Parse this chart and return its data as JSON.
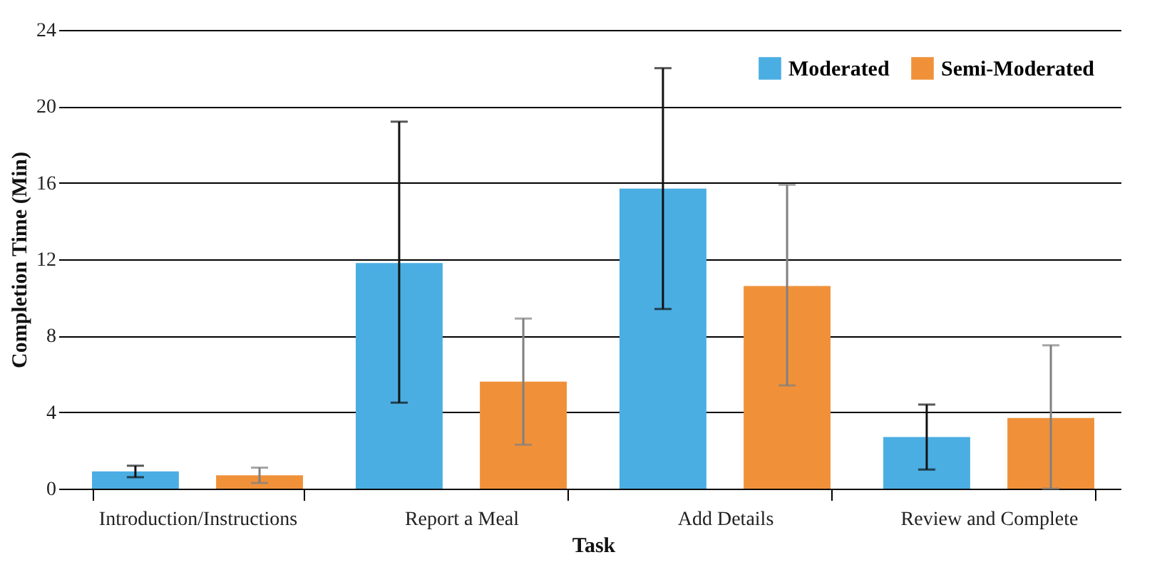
{
  "chart_data": {
    "type": "bar",
    "xlabel": "Task",
    "ylabel": "Completion Time (Min)",
    "categories": [
      "Introduction/Instructions",
      "Report a Meal",
      "Add Details",
      "Review and Complete"
    ],
    "series": [
      {
        "name": "Moderated",
        "color": "#4aaee2",
        "values": [
          0.9,
          11.8,
          15.7,
          2.7
        ],
        "errors": [
          [
            0.6,
            1.2
          ],
          [
            4.5,
            19.2
          ],
          [
            9.4,
            22
          ],
          [
            1.0,
            4.4
          ]
        ]
      },
      {
        "name": "Semi-Moderated",
        "color": "#f0913a",
        "values": [
          0.7,
          5.6,
          10.6,
          3.7
        ],
        "errors": [
          [
            0.3,
            1.1
          ],
          [
            2.3,
            8.9
          ],
          [
            5.4,
            15.9
          ],
          [
            0.0,
            7.5
          ]
        ]
      }
    ],
    "ylim": [
      0,
      24
    ],
    "yticks": [
      0,
      4,
      8,
      12,
      16,
      20,
      24
    ],
    "grid": "y",
    "legend": "top right"
  }
}
